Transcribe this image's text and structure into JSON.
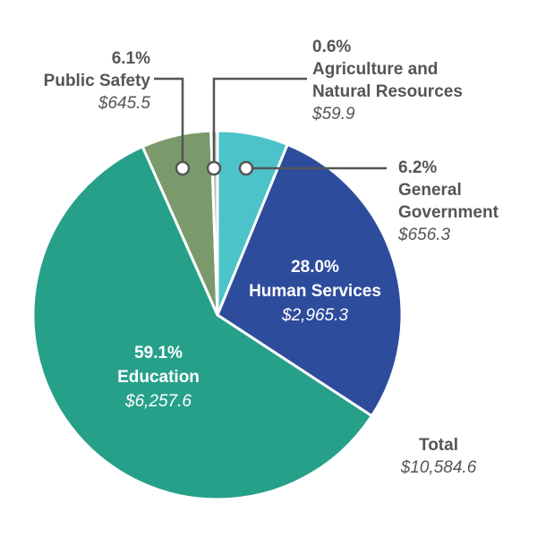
{
  "chart_data": {
    "type": "pie",
    "title": "",
    "start_angle_deg": 0,
    "direction": "clockwise",
    "slices": [
      {
        "label": "General Government",
        "percent_label": "6.2%",
        "value": 656.3,
        "value_label": "$656.3",
        "color": "#4cc3c8"
      },
      {
        "label": "Human Services",
        "percent_label": "28.0%",
        "value": 2965.3,
        "value_label": "$2,965.3",
        "color": "#2e4c9c"
      },
      {
        "label": "Education",
        "percent_label": "59.1%",
        "value": 6257.6,
        "value_label": "$6,257.6",
        "color": "#27a08a"
      },
      {
        "label": "Public Safety",
        "percent_label": "6.1%",
        "value": 645.5,
        "value_label": "$645.5",
        "color": "#7b9a6c"
      },
      {
        "label": "Agriculture and Natural Resources",
        "label_lines": [
          "Agriculture and",
          "Natural Resources"
        ],
        "percent_label": "0.6%",
        "value": 59.9,
        "value_label": "$59.9",
        "color": "#b7c2b4"
      }
    ],
    "total": {
      "label": "Total",
      "value": 10584.6,
      "value_label": "$10,584.6"
    }
  }
}
